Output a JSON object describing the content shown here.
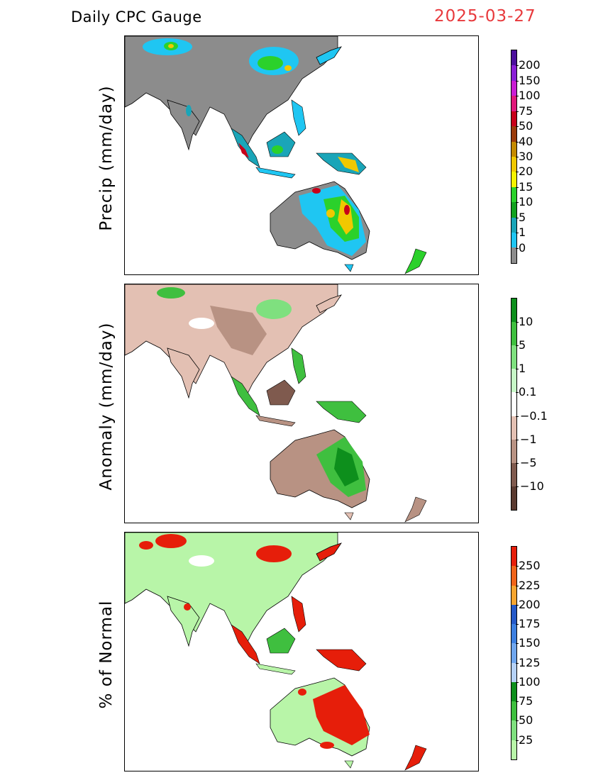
{
  "header": {
    "title": "Daily CPC Gauge",
    "date": "2025-03-27"
  },
  "panels": [
    {
      "id": "precip",
      "ylabel": "Precip (mm/day)",
      "legend_labels": [
        "200",
        "150",
        "100",
        "75",
        "50",
        "40",
        "30",
        "20",
        "15",
        "10",
        "5",
        "1",
        "0"
      ],
      "legend_colors": [
        "#4b0f9c",
        "#8a1fd6",
        "#c91dd3",
        "#e0187a",
        "#c7001a",
        "#9a3b0a",
        "#c48a00",
        "#f0c800",
        "#f6f200",
        "#2bd12b",
        "#12a11e",
        "#1aa5b8",
        "#1fc6f2",
        "#8c8c8c"
      ]
    },
    {
      "id": "anomaly",
      "ylabel": "Anomaly (mm/day)",
      "legend_labels": [
        "10",
        "5",
        "1",
        "0.1",
        "−0.1",
        "−1",
        "−5",
        "−10"
      ],
      "legend_colors": [
        "#0d8f1c",
        "#3fbf3f",
        "#7fe07f",
        "#c7f7c7",
        "#ffffff",
        "#e3c0b3",
        "#b89283",
        "#7f5a4e",
        "#5a3a30"
      ]
    },
    {
      "id": "percent",
      "ylabel": "% of Normal",
      "legend_labels": [
        "250",
        "225",
        "200",
        "175",
        "150",
        "125",
        "100",
        "75",
        "50",
        "25"
      ],
      "legend_colors": [
        "#e61e0a",
        "#f0641a",
        "#f7a530",
        "#2459c8",
        "#3c7fe0",
        "#6fa6ee",
        "#b5d1f6",
        "#0d8f1c",
        "#3fbf3f",
        "#7fe07f",
        "#b8f5a8"
      ]
    }
  ]
}
